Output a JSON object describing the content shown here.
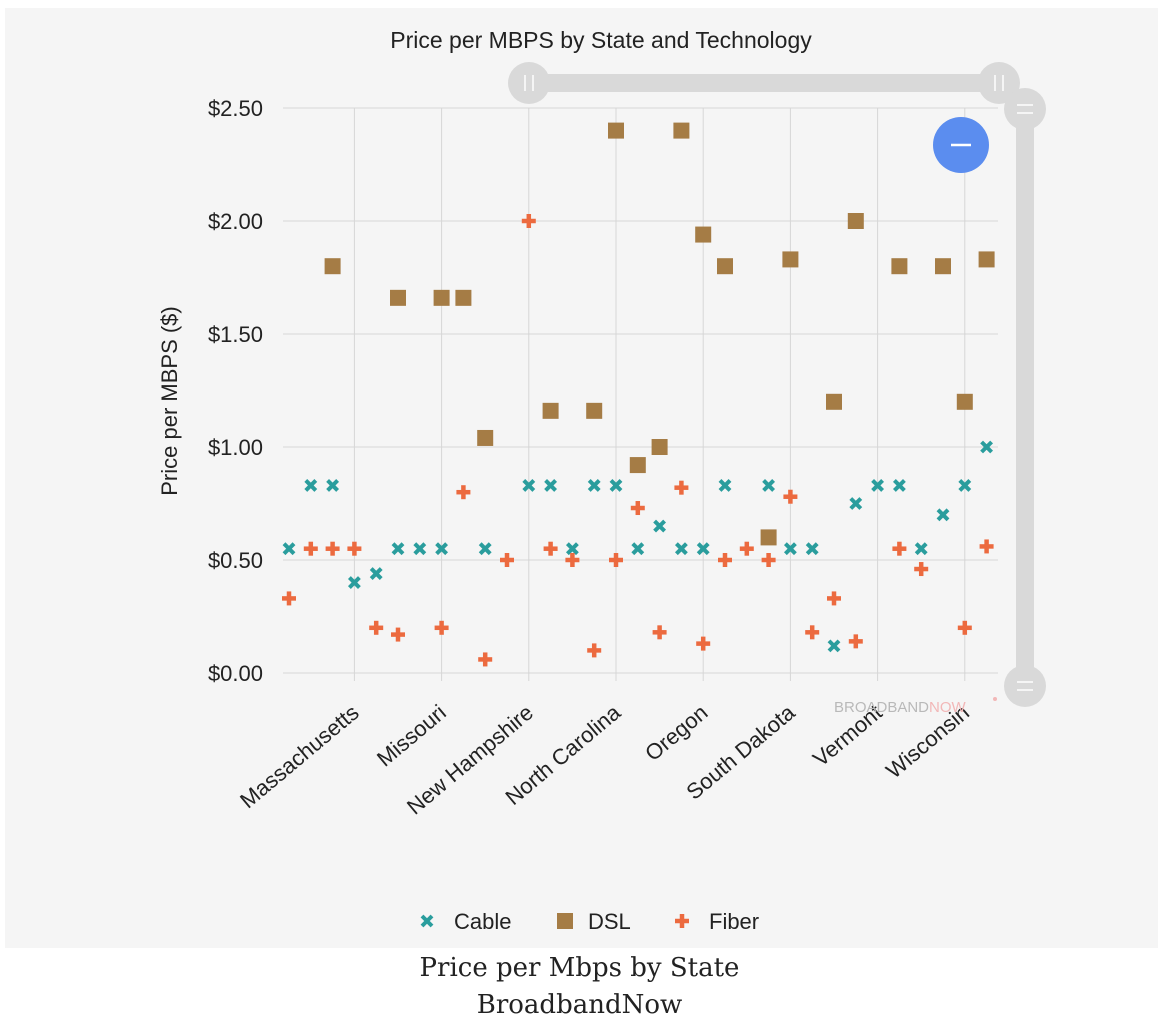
{
  "chart_data": {
    "type": "scatter",
    "title": "Price per MBPS by State and Technology",
    "ylabel": "Price per MBPS ($)",
    "xlabel": "",
    "ylim": [
      0,
      2.5
    ],
    "y_ticks": [
      "$0.00",
      "$0.50",
      "$1.00",
      "$1.50",
      "$2.00",
      "$2.50"
    ],
    "y_tick_values": [
      0,
      0.5,
      1.0,
      1.5,
      2.0,
      2.5
    ],
    "categories": [
      "Massachusetts",
      "Missouri",
      "New Hampshire",
      "North Carolina",
      "Oregon",
      "South Dakota",
      "Vermont",
      "Wisconsin"
    ],
    "grid": true,
    "legend_position": "bottom",
    "series": [
      {
        "name": "Cable",
        "color": "#2a9d9d",
        "marker": "x",
        "points": [
          [
            0,
            0.55
          ],
          [
            1,
            0.83
          ],
          [
            2,
            0.83
          ],
          [
            3,
            0.4
          ],
          [
            4,
            0.44
          ],
          [
            5,
            0.55
          ],
          [
            6,
            0.55
          ],
          [
            7,
            0.55
          ],
          [
            9,
            0.55
          ],
          [
            11,
            0.83
          ],
          [
            12,
            0.83
          ],
          [
            13,
            0.55
          ],
          [
            14,
            0.83
          ],
          [
            15,
            0.83
          ],
          [
            16,
            0.55
          ],
          [
            17,
            0.65
          ],
          [
            18,
            0.55
          ],
          [
            19,
            0.55
          ],
          [
            20,
            0.83
          ],
          [
            22,
            0.83
          ],
          [
            23,
            0.55
          ],
          [
            24,
            0.55
          ],
          [
            25,
            0.12
          ],
          [
            26,
            0.75
          ],
          [
            27,
            0.83
          ],
          [
            28,
            0.83
          ],
          [
            29,
            0.55
          ],
          [
            30,
            0.7
          ],
          [
            31,
            0.83
          ],
          [
            32,
            1.0
          ]
        ]
      },
      {
        "name": "DSL",
        "color": "#a57c45",
        "marker": "square",
        "points": [
          [
            2,
            1.8
          ],
          [
            5,
            1.66
          ],
          [
            7,
            1.66
          ],
          [
            8,
            1.66
          ],
          [
            9,
            1.04
          ],
          [
            12,
            1.16
          ],
          [
            14,
            1.16
          ],
          [
            15,
            2.4
          ],
          [
            16,
            0.92
          ],
          [
            17,
            1.0
          ],
          [
            18,
            2.4
          ],
          [
            19,
            1.94
          ],
          [
            20,
            1.8
          ],
          [
            22,
            0.6
          ],
          [
            23,
            1.83
          ],
          [
            25,
            1.2
          ],
          [
            26,
            2.0
          ],
          [
            28,
            1.8
          ],
          [
            30,
            1.8
          ],
          [
            31,
            1.2
          ],
          [
            32,
            1.83
          ]
        ]
      },
      {
        "name": "Fiber",
        "color": "#ec6a3f",
        "marker": "plus",
        "points": [
          [
            0,
            0.33
          ],
          [
            1,
            0.55
          ],
          [
            2,
            0.55
          ],
          [
            3,
            0.55
          ],
          [
            4,
            0.2
          ],
          [
            5,
            0.17
          ],
          [
            7,
            0.2
          ],
          [
            8,
            0.8
          ],
          [
            9,
            0.06
          ],
          [
            10,
            0.5
          ],
          [
            11,
            2.0
          ],
          [
            12,
            0.55
          ],
          [
            13,
            0.5
          ],
          [
            14,
            0.1
          ],
          [
            15,
            0.5
          ],
          [
            16,
            0.73
          ],
          [
            17,
            0.18
          ],
          [
            18,
            0.82
          ],
          [
            19,
            0.13
          ],
          [
            20,
            0.5
          ],
          [
            21,
            0.55
          ],
          [
            22,
            0.5
          ],
          [
            23,
            0.78
          ],
          [
            24,
            0.18
          ],
          [
            25,
            0.33
          ],
          [
            26,
            0.14
          ],
          [
            28,
            0.55
          ],
          [
            29,
            0.46
          ],
          [
            31,
            0.2
          ],
          [
            32,
            0.56
          ]
        ]
      }
    ]
  },
  "watermark": {
    "part1": "BROADBAND",
    "part2": "NOW"
  },
  "caption": {
    "line1": "Price per Mbps by State",
    "line2": "BroadbandNow"
  },
  "colors": {
    "zoom_button": "#5b8def",
    "scrollbar": "#d9d9d9",
    "grid": "#d6d6d6"
  }
}
